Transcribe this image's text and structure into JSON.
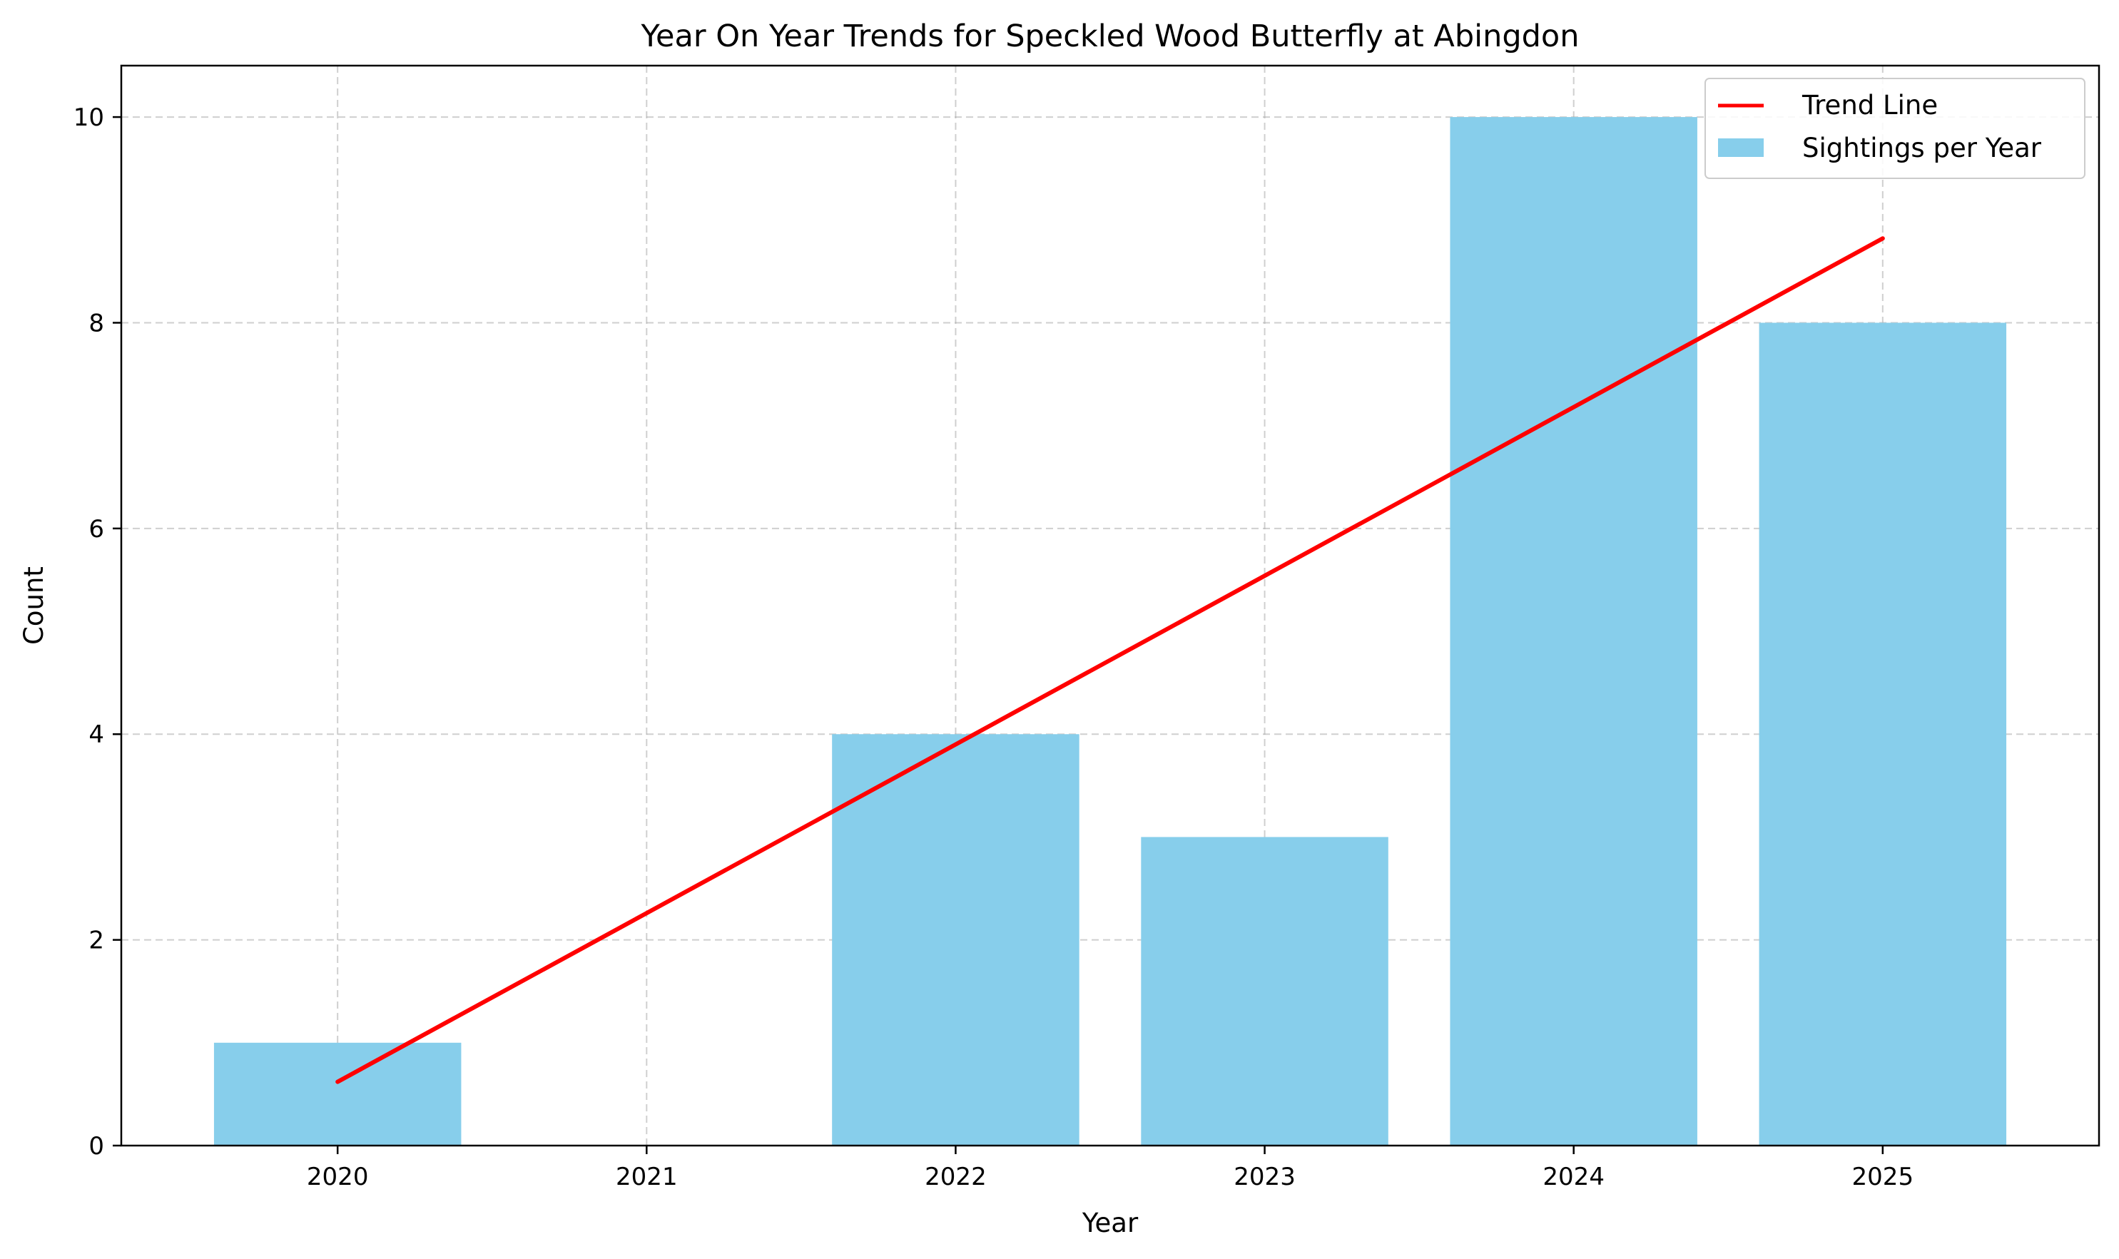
{
  "chart_data": {
    "type": "bar",
    "title": "Year On Year Trends for Speckled Wood Butterfly at Abingdon",
    "xlabel": "Year",
    "ylabel": "Count",
    "categories": [
      "2020",
      "2021",
      "2022",
      "2023",
      "2024",
      "2025"
    ],
    "series": [
      {
        "name": "Sightings per Year",
        "type": "bar",
        "values": [
          1,
          0,
          4,
          3,
          10,
          8
        ],
        "color": "#87CEEB"
      },
      {
        "name": "Trend Line",
        "type": "line",
        "values": [
          0.62,
          2.26,
          3.9,
          5.54,
          7.18,
          8.82
        ],
        "color": "#FF0000"
      }
    ],
    "yticks": [
      "0",
      "2",
      "4",
      "6",
      "8",
      "10"
    ],
    "ylim": [
      0,
      10.5
    ],
    "grid": true,
    "legend": "top-right"
  }
}
